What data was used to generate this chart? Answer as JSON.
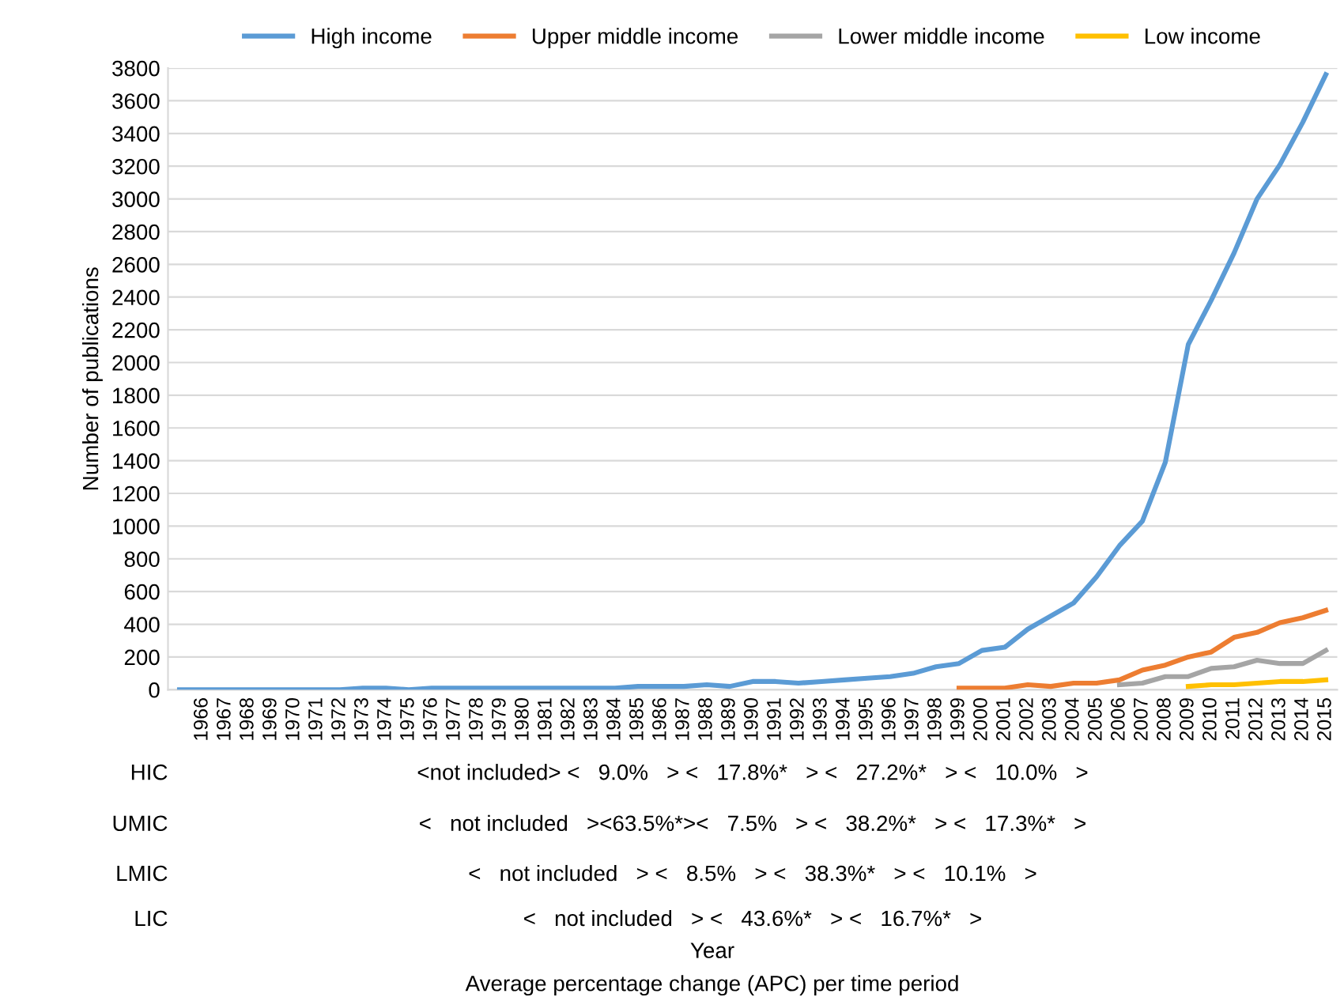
{
  "chart_data": {
    "type": "line",
    "ylabel": "Number of publications",
    "categories": [
      null,
      "1966",
      "1967",
      "1968",
      "1969",
      "1970",
      "1971",
      "1972",
      "1973",
      "1974",
      "1975",
      "1976",
      "1977",
      "1978",
      "1979",
      "1980",
      "1981",
      "1982",
      "1983",
      "1984",
      "1985",
      "1986",
      "1987",
      "1988",
      "1989",
      "1990",
      "1991",
      "1992",
      "1993",
      "1994",
      "1995",
      "1996",
      "1997",
      "1998",
      "1999",
      "2000",
      "2001",
      "2002",
      "2003",
      "2004",
      "2005",
      "2006",
      "2007",
      "2008",
      "2009",
      "2010",
      "2011",
      "2012",
      "2013",
      "2014",
      "2015"
    ],
    "series": [
      {
        "name": "High income",
        "color": "#5b9bd5",
        "values": [
          0,
          0,
          0,
          0,
          0,
          0,
          0,
          0,
          10,
          10,
          0,
          10,
          10,
          10,
          10,
          10,
          10,
          10,
          10,
          10,
          20,
          20,
          20,
          30,
          20,
          50,
          50,
          40,
          50,
          60,
          70,
          80,
          100,
          140,
          160,
          240,
          260,
          370,
          450,
          530,
          690,
          880,
          1030,
          1390,
          2110,
          2380,
          2670,
          3000,
          3210,
          3470,
          3760
        ]
      },
      {
        "name": "Upper middle income",
        "color": "#ed7d31",
        "values": [
          null,
          null,
          null,
          null,
          null,
          null,
          null,
          null,
          null,
          null,
          null,
          null,
          null,
          null,
          null,
          null,
          null,
          null,
          null,
          null,
          null,
          null,
          null,
          null,
          null,
          null,
          null,
          null,
          null,
          null,
          null,
          null,
          null,
          null,
          10,
          10,
          10,
          30,
          20,
          40,
          40,
          60,
          120,
          150,
          200,
          230,
          320,
          350,
          410,
          440,
          485
        ]
      },
      {
        "name": "Lower middle income",
        "color": "#a5a5a5",
        "values": [
          null,
          null,
          null,
          null,
          null,
          null,
          null,
          null,
          null,
          null,
          null,
          null,
          null,
          null,
          null,
          null,
          null,
          null,
          null,
          null,
          null,
          null,
          null,
          null,
          null,
          null,
          null,
          null,
          null,
          null,
          null,
          null,
          null,
          null,
          null,
          null,
          null,
          null,
          null,
          null,
          null,
          30,
          40,
          80,
          80,
          130,
          140,
          180,
          160,
          160,
          240
        ]
      },
      {
        "name": "Low income",
        "color": "#ffc000",
        "values": [
          null,
          null,
          null,
          null,
          null,
          null,
          null,
          null,
          null,
          null,
          null,
          null,
          null,
          null,
          null,
          null,
          null,
          null,
          null,
          null,
          null,
          null,
          null,
          null,
          null,
          null,
          null,
          null,
          null,
          null,
          null,
          null,
          null,
          null,
          null,
          null,
          null,
          null,
          null,
          null,
          null,
          null,
          null,
          null,
          20,
          30,
          30,
          40,
          50,
          50,
          60
        ]
      }
    ],
    "ylim": [
      0,
      3800
    ],
    "yticks": [
      0,
      200,
      400,
      600,
      800,
      1000,
      1200,
      1400,
      1600,
      1800,
      2000,
      2200,
      2400,
      2600,
      2800,
      3000,
      3200,
      3400,
      3600,
      3800
    ],
    "grid": "y",
    "legend": "top",
    "marker": "none",
    "line_style": "solid",
    "annotations": [
      "HIC",
      "<not included> <   9.0%   > <   17.8%*   > <   27.2%*   > <   10.0%   >",
      "UMIC",
      "<   not included   ><63.5%*><   7.5%   > <   38.2%*   > <   17.3%*   >",
      "LMIC",
      "<   not included   > <   8.5%   > <   38.3%*   > <   10.1%   >",
      "LIC",
      "<   not included   > <   43.6%*   > <   16.7%*   >",
      "Year",
      "Average percentage change (APC) per time period"
    ]
  }
}
